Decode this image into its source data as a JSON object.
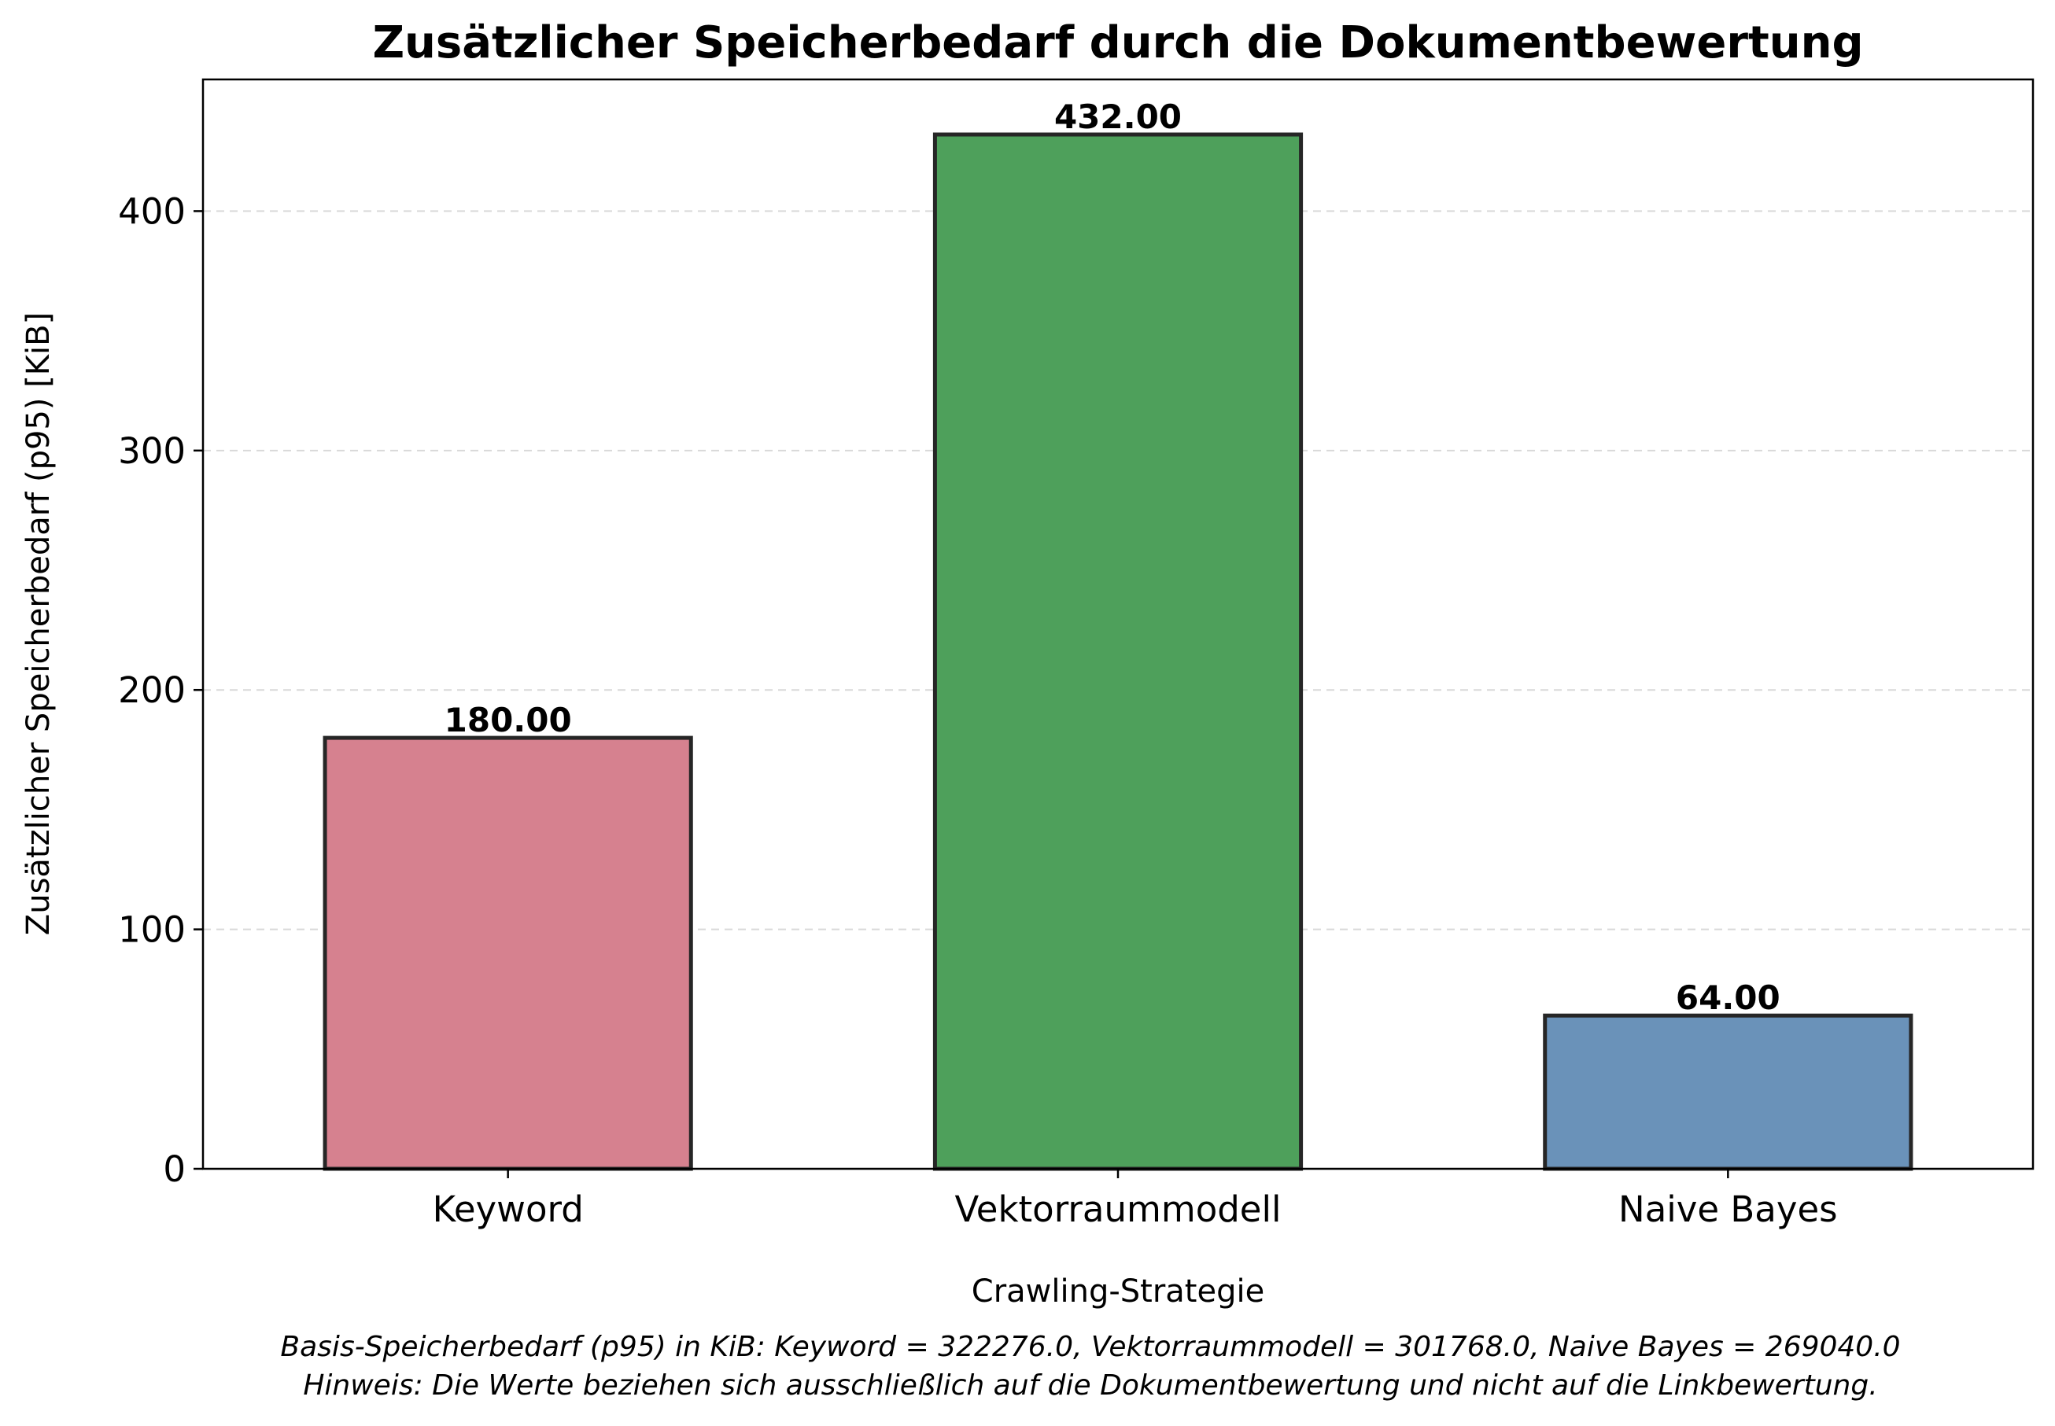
{
  "chart_data": {
    "type": "bar",
    "title": "Zusätzlicher Speicherbedarf durch die Dokumentbewertung",
    "xlabel": "Crawling-Strategie",
    "ylabel": "Zusätzlicher Speicherbedarf (p95) [KiB]",
    "categories": [
      "Keyword",
      "Vektorraummodell",
      "Naive Bayes"
    ],
    "values": [
      180.0,
      432.0,
      64.0
    ],
    "value_labels": [
      "180.00",
      "432.00",
      "64.00"
    ],
    "colors": [
      "#d6818f",
      "#4ea05b",
      "#6a92b9"
    ],
    "ylim": [
      0,
      455
    ],
    "yticks": [
      0,
      100,
      200,
      300,
      400
    ],
    "ytick_labels": [
      "0",
      "100",
      "200",
      "300",
      "400"
    ],
    "grid": "y-dashed",
    "legend": "none"
  },
  "notes": {
    "line1": "Basis-Speicherbedarf (p95) in KiB: Keyword = 322276.0, Vektorraummodell = 301768.0, Naive Bayes = 269040.0",
    "line2": "Hinweis: Die Werte beziehen sich ausschließlich auf die Dokumentbewertung und nicht auf die Linkbewertung."
  }
}
